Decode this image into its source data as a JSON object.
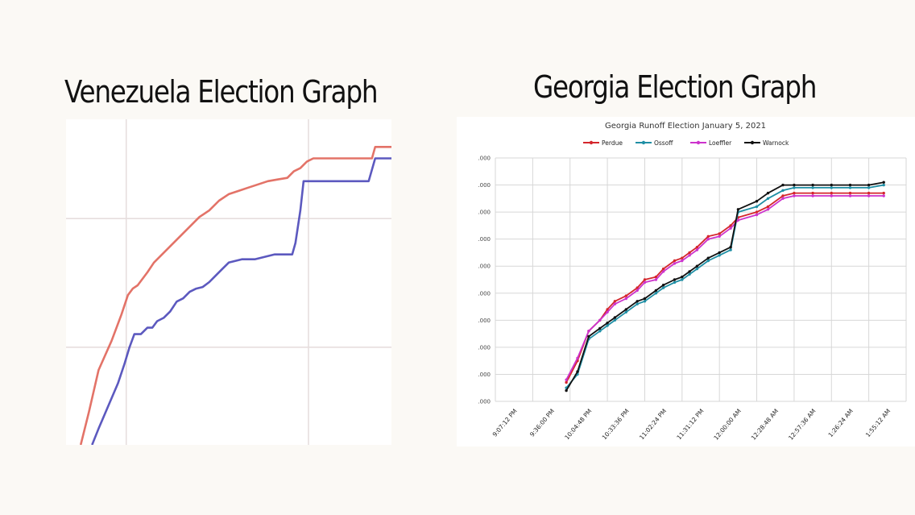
{
  "headings": {
    "venezuela": "Venezuela Election Graph",
    "georgia": "Georgia Election Graph"
  },
  "colors": {
    "page_background": "#fbf9f5",
    "ven_red": "#e06458",
    "ven_blue": "#4a47b8",
    "perdue": "#d4262c",
    "ossoff": "#1f8fa5",
    "loeffler": "#cc33cc",
    "warnock": "#111111"
  },
  "chart_data": [
    {
      "type": "line",
      "title": "",
      "xlabel": "",
      "ylabel": "",
      "grid": true,
      "legend": "none",
      "xlim": [
        0,
        100
      ],
      "ylim": [
        0,
        100
      ],
      "series": [
        {
          "color": "#e06458",
          "x": [
            4.5,
            7,
            10,
            14,
            17,
            19,
            20.5,
            22,
            25,
            27,
            29,
            32,
            35,
            38,
            41,
            44,
            47,
            50,
            53,
            56,
            59,
            62,
            65,
            68,
            70,
            72,
            73,
            74,
            76,
            80,
            90,
            94,
            95,
            100
          ],
          "y": [
            0,
            10,
            23,
            32,
            40,
            46,
            48,
            49,
            53,
            56,
            58,
            61,
            64,
            67,
            70,
            72,
            75,
            77,
            78,
            79,
            80,
            81,
            81.5,
            82,
            84,
            85,
            86,
            87,
            88,
            88,
            88,
            88,
            91.5,
            91.5
          ]
        },
        {
          "color": "#4a47b8",
          "x": [
            8,
            10,
            13,
            16,
            18,
            19.5,
            21,
            23,
            25,
            26.5,
            28,
            30,
            32,
            34,
            36,
            38,
            40,
            42,
            44,
            46,
            48,
            50,
            52,
            54,
            56,
            58,
            60,
            62,
            64,
            66,
            68,
            69.5,
            70.5,
            72,
            73,
            74,
            76,
            80,
            90,
            93,
            95,
            100
          ],
          "y": [
            0,
            5,
            12,
            19,
            25,
            30,
            34,
            34,
            36,
            36,
            38,
            39,
            41,
            44,
            45,
            47,
            48,
            48.5,
            50,
            52,
            54,
            56,
            56.5,
            57,
            57,
            57,
            57.5,
            58,
            58.5,
            58.5,
            58.5,
            58.5,
            62,
            72,
            81,
            81,
            81,
            81,
            81,
            81,
            88,
            88
          ]
        }
      ]
    },
    {
      "type": "line",
      "title": "Georgia Runoff Election January 5, 2021",
      "legend": "top",
      "grid": true,
      "x_tick_labels": [
        "9:07:12 PM",
        "9:36:00 PM",
        "10:04:48 PM",
        "10:33:36 PM",
        "11:02:24 PM",
        "11:31:12 PM",
        "12:00:00 AM",
        "12:28:48 AM",
        "12:57:36 AM",
        "1:26:24 AM",
        "1:55:12 AM"
      ],
      "y_tick_labels": [
        ".000",
        ".000",
        ".000",
        ".000",
        ".000",
        ".000",
        ".000",
        ".000",
        ".000",
        ".000"
      ],
      "ylim": [
        0,
        9
      ],
      "series": [
        {
          "name": "Perdue",
          "color": "#d4262c",
          "x": [
            1.9,
            2.2,
            2.5,
            2.8,
            3.0,
            3.2,
            3.5,
            3.8,
            4.0,
            4.3,
            4.5,
            4.8,
            5.0,
            5.2,
            5.4,
            5.7,
            6.0,
            6.3,
            6.5,
            7.0,
            7.3,
            7.7,
            8.0,
            8.5,
            9.0,
            9.5,
            10.0,
            10.4
          ],
          "y": [
            0.7,
            1.5,
            2.6,
            3.0,
            3.4,
            3.7,
            3.9,
            4.2,
            4.5,
            4.6,
            4.9,
            5.2,
            5.3,
            5.5,
            5.7,
            6.1,
            6.2,
            6.5,
            6.8,
            7.0,
            7.2,
            7.6,
            7.7,
            7.7,
            7.7,
            7.7,
            7.7,
            7.7
          ]
        },
        {
          "name": "Ossoff",
          "color": "#1f8fa5",
          "x": [
            1.9,
            2.2,
            2.5,
            2.8,
            3.0,
            3.2,
            3.5,
            3.8,
            4.0,
            4.3,
            4.5,
            4.8,
            5.0,
            5.2,
            5.4,
            5.7,
            6.0,
            6.3,
            6.5,
            7.0,
            7.3,
            7.7,
            8.0,
            8.5,
            9.0,
            9.5,
            10.0,
            10.4
          ],
          "y": [
            0.5,
            1.0,
            2.3,
            2.6,
            2.8,
            3.0,
            3.3,
            3.6,
            3.7,
            4.0,
            4.2,
            4.4,
            4.5,
            4.7,
            4.9,
            5.2,
            5.4,
            5.6,
            7.0,
            7.2,
            7.5,
            7.8,
            7.9,
            7.9,
            7.9,
            7.9,
            7.9,
            8.0
          ]
        },
        {
          "name": "Loeffler",
          "color": "#cc33cc",
          "x": [
            1.9,
            2.2,
            2.5,
            2.8,
            3.0,
            3.2,
            3.5,
            3.8,
            4.0,
            4.3,
            4.5,
            4.8,
            5.0,
            5.2,
            5.4,
            5.7,
            6.0,
            6.3,
            6.5,
            7.0,
            7.3,
            7.7,
            8.0,
            8.5,
            9.0,
            9.5,
            10.0,
            10.4
          ],
          "y": [
            0.8,
            1.6,
            2.6,
            3.0,
            3.3,
            3.6,
            3.8,
            4.1,
            4.4,
            4.5,
            4.8,
            5.1,
            5.2,
            5.4,
            5.6,
            6.0,
            6.1,
            6.4,
            6.7,
            6.9,
            7.1,
            7.5,
            7.6,
            7.6,
            7.6,
            7.6,
            7.6,
            7.6
          ]
        },
        {
          "name": "Warnock",
          "color": "#111111",
          "x": [
            1.9,
            2.2,
            2.5,
            2.8,
            3.0,
            3.2,
            3.5,
            3.8,
            4.0,
            4.3,
            4.5,
            4.8,
            5.0,
            5.2,
            5.4,
            5.7,
            6.0,
            6.3,
            6.5,
            7.0,
            7.3,
            7.7,
            8.0,
            8.5,
            9.0,
            9.5,
            10.0,
            10.4
          ],
          "y": [
            0.4,
            1.1,
            2.4,
            2.7,
            2.9,
            3.1,
            3.4,
            3.7,
            3.8,
            4.1,
            4.3,
            4.5,
            4.6,
            4.8,
            5.0,
            5.3,
            5.5,
            5.7,
            7.1,
            7.4,
            7.7,
            8.0,
            8.0,
            8.0,
            8.0,
            8.0,
            8.0,
            8.1
          ]
        }
      ]
    }
  ]
}
